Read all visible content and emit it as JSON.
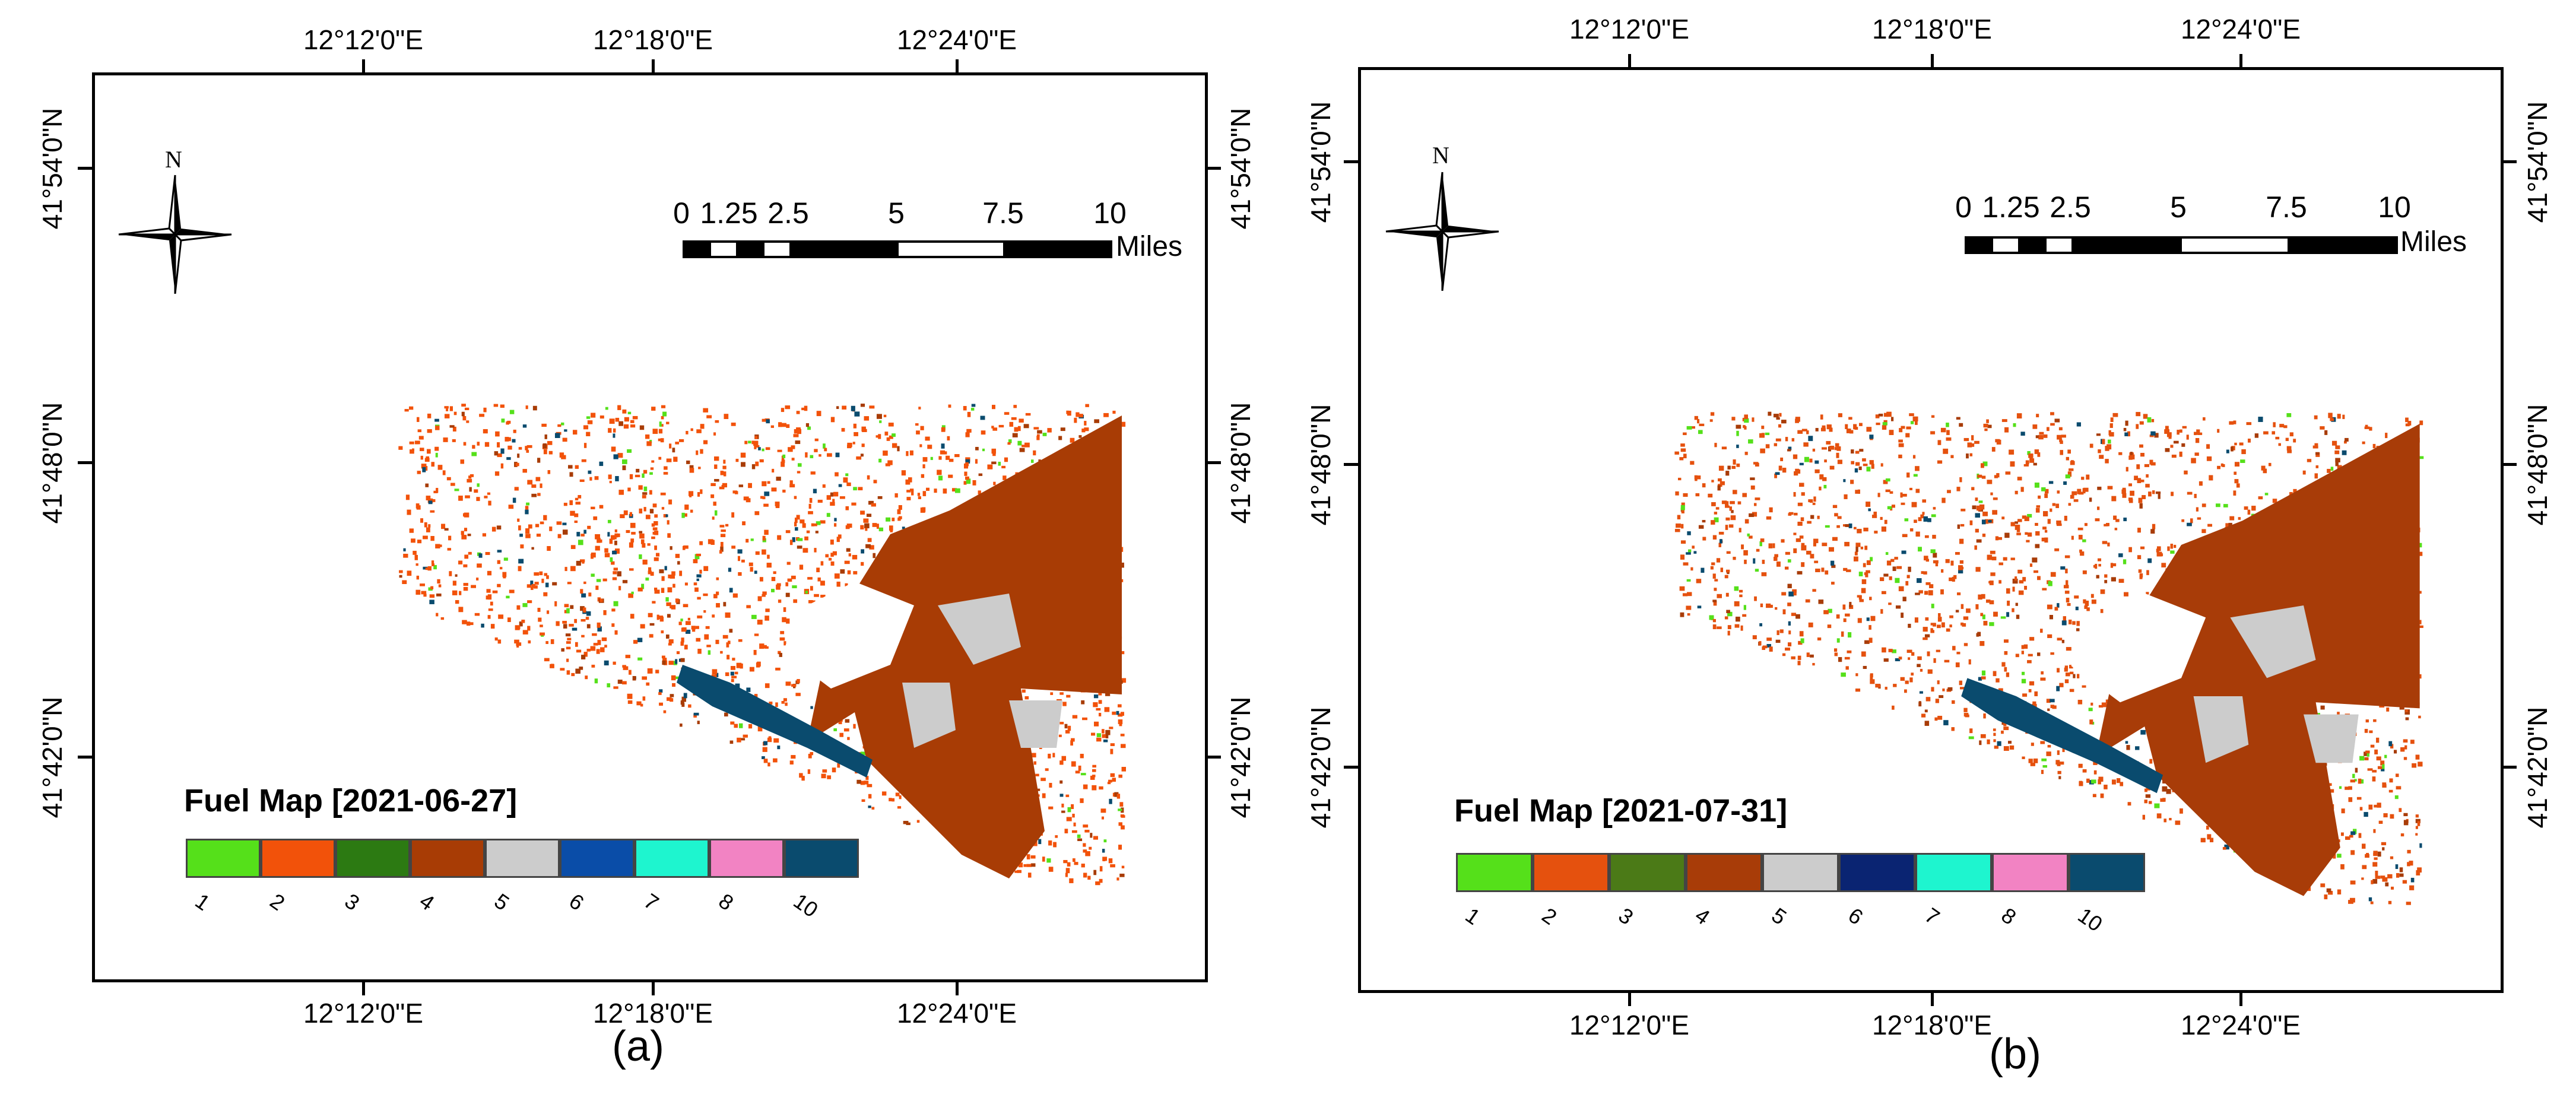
{
  "figure": {
    "panels": [
      {
        "id": "a",
        "caption": "(a)",
        "legend_title": "Fuel Map [2021-06-27]",
        "lon_labels": [
          "12°12'0\"E",
          "12°18'0\"E",
          "12°24'0\"E"
        ],
        "lat_labels": [
          "41°54'0\"N",
          "41°48'0\"N",
          "41°42'0\"N"
        ],
        "north_label": "N",
        "scale_labels": [
          "0",
          "1.25",
          "2.5",
          "5",
          "7.5",
          "10"
        ],
        "scale_unit": "Miles"
      },
      {
        "id": "b",
        "caption": "(b)",
        "legend_title": "Fuel Map [2021-07-31]",
        "lon_labels": [
          "12°12'0\"E",
          "12°18'0\"E",
          "12°24'0\"E"
        ],
        "lat_labels": [
          "41°54'0\"N",
          "41°48'0\"N",
          "41°42'0\"N"
        ],
        "north_label": "N",
        "scale_labels": [
          "0",
          "1.25",
          "2.5",
          "5",
          "7.5",
          "10"
        ],
        "scale_unit": "Miles"
      }
    ]
  },
  "legend": {
    "classes": [
      {
        "label": "1",
        "color_a": "#55e01a",
        "color_b": "#55e01a"
      },
      {
        "label": "2",
        "color_a": "#f2520a",
        "color_b": "#e5510e"
      },
      {
        "label": "3",
        "color_a": "#2c7a12",
        "color_b": "#4b7a17"
      },
      {
        "label": "4",
        "color_a": "#a83c05",
        "color_b": "#a83c08"
      },
      {
        "label": "5",
        "color_a": "#cccccc",
        "color_b": "#cccccc"
      },
      {
        "label": "6",
        "color_a": "#0a4da8",
        "color_b": "#0a2472"
      },
      {
        "label": "7",
        "color_a": "#1ef5cf",
        "color_b": "#1ef5cf"
      },
      {
        "label": "8",
        "color_a": "#f283c3",
        "color_b": "#f283c3"
      },
      {
        "label": "10",
        "color_a": "#0a4b6e",
        "color_b": "#0a4b6e"
      }
    ]
  }
}
